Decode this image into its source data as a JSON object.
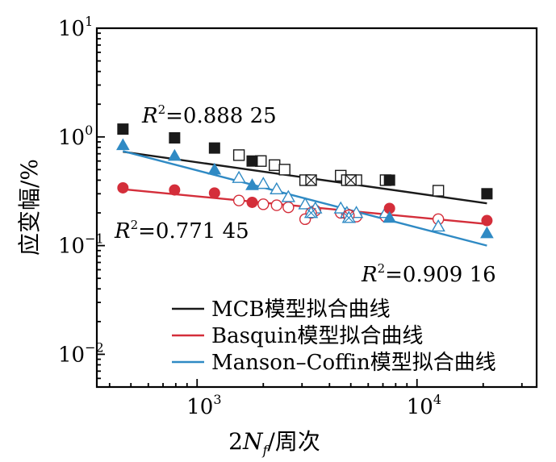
{
  "chart_data": {
    "type": "scatter",
    "title": "",
    "xlabel": "2N_f/周次",
    "xlabel_parts": [
      "2",
      "N",
      "f",
      "/周次"
    ],
    "ylabel": "应变幅/%",
    "x_scale": "log",
    "y_scale": "log",
    "xlim": [
      350,
      35000
    ],
    "ylim": [
      0.005,
      10
    ],
    "x_ticks": [
      {
        "value": 1000,
        "base": "10",
        "exp": "3"
      },
      {
        "value": 10000,
        "base": "10",
        "exp": "4"
      }
    ],
    "y_ticks": [
      {
        "value": 0.01,
        "base": "10",
        "exp": "−2"
      },
      {
        "value": 0.1,
        "base": "10",
        "exp": "−1"
      },
      {
        "value": 1,
        "base": "10",
        "exp": "0"
      },
      {
        "value": 10,
        "base": "10",
        "exp": "1"
      }
    ],
    "legend_position": "bottom-right",
    "series": [
      {
        "name": "MCB模型拟合曲线",
        "color": "#1a1a1a",
        "marker": "square",
        "fit": {
          "x": [
            460,
            20800
          ],
          "y": [
            0.73,
            0.245
          ]
        },
        "r2_label": "R",
        "r2_sup": "2",
        "r2_value": "=0.888 25",
        "filled_points": {
          "x": [
            460,
            790,
            1200,
            1780,
            7500,
            20800
          ],
          "y": [
            1.18,
            0.98,
            0.79,
            0.6,
            0.4,
            0.3
          ]
        },
        "open_points": {
          "x": [
            1550,
            1950,
            2250,
            2500,
            3100,
            4500,
            4800,
            5300,
            7200,
            12500
          ],
          "y": [
            0.68,
            0.6,
            0.55,
            0.5,
            0.4,
            0.44,
            0.4,
            0.4,
            0.4,
            0.32
          ]
        },
        "crossed_points": {
          "x": [
            3300,
            5000
          ],
          "y": [
            0.4,
            0.4
          ]
        }
      },
      {
        "name": "Basquin模型拟合曲线",
        "color": "#d42e3a",
        "marker": "circle",
        "fit": {
          "x": [
            460,
            20800
          ],
          "y": [
            0.33,
            0.158
          ]
        },
        "r2_label": "R",
        "r2_sup": "2",
        "r2_value": "=0.771 45",
        "filled_points": {
          "x": [
            460,
            790,
            1200,
            1780,
            7500,
            20800
          ],
          "y": [
            0.34,
            0.325,
            0.305,
            0.25,
            0.22,
            0.17
          ]
        },
        "open_points": {
          "x": [
            1550,
            2000,
            2300,
            2600,
            3100,
            3450,
            4500,
            4800,
            5300,
            7200,
            12500
          ],
          "y": [
            0.26,
            0.24,
            0.235,
            0.225,
            0.175,
            0.21,
            0.2,
            0.195,
            0.185,
            0.185,
            0.175
          ]
        },
        "crossed_points": {
          "x": [
            3300,
            4900
          ],
          "y": [
            0.2,
            0.19
          ]
        }
      },
      {
        "name": "Manson–Coffin模型拟合曲线",
        "color": "#2f8ac4",
        "marker": "triangle",
        "fit": {
          "x": [
            460,
            20800
          ],
          "y": [
            0.74,
            0.1
          ]
        },
        "r2_label": "R",
        "r2_sup": "2",
        "r2_value": "=0.909 16",
        "filled_points": {
          "x": [
            460,
            790,
            1200,
            1780,
            7500,
            20800
          ],
          "y": [
            0.84,
            0.67,
            0.5,
            0.36,
            0.18,
            0.13
          ]
        },
        "open_points": {
          "x": [
            1550,
            2000,
            2300,
            2600,
            3100,
            3450,
            4500,
            4800,
            5300,
            7200,
            12500
          ],
          "y": [
            0.42,
            0.37,
            0.33,
            0.28,
            0.24,
            0.22,
            0.22,
            0.2,
            0.2,
            0.2,
            0.15
          ]
        },
        "crossed_points": {
          "x": [
            3300,
            4900
          ],
          "y": [
            0.2,
            0.18
          ]
        }
      }
    ]
  }
}
